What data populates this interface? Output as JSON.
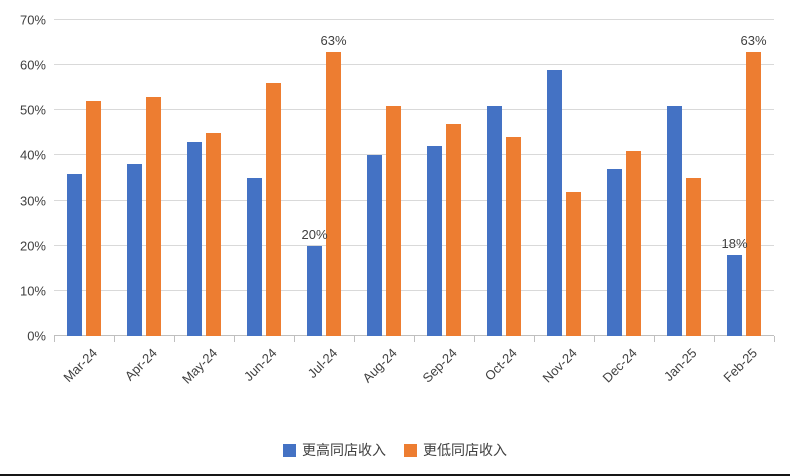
{
  "chart_data": {
    "type": "bar",
    "title": "",
    "categories": [
      "Mar-24",
      "Apr-24",
      "May-24",
      "Jun-24",
      "Jul-24",
      "Aug-24",
      "Sep-24",
      "Oct-24",
      "Nov-24",
      "Dec-24",
      "Jan-25",
      "Feb-25"
    ],
    "series": [
      {
        "name": "更高同店收入",
        "color": "#4472C4",
        "values": [
          36,
          38,
          43,
          35,
          20,
          40,
          42,
          51,
          59,
          37,
          51,
          18
        ]
      },
      {
        "name": "更低同店收入",
        "color": "#ED7D31",
        "values": [
          52,
          53,
          45,
          56,
          63,
          51,
          47,
          44,
          32,
          41,
          35,
          63
        ]
      }
    ],
    "data_labels": [
      {
        "category": "Jul-24",
        "series_index": 0,
        "label": "20%"
      },
      {
        "category": "Jul-24",
        "series_index": 1,
        "label": "63%"
      },
      {
        "category": "Feb-25",
        "series_index": 0,
        "label": "18%"
      },
      {
        "category": "Feb-25",
        "series_index": 1,
        "label": "63%"
      }
    ],
    "yticks": [
      "0%",
      "10%",
      "20%",
      "30%",
      "40%",
      "50%",
      "60%",
      "70%"
    ],
    "ytick_step": 10,
    "ylim": [
      0,
      70
    ],
    "grid": true,
    "legend_position": "bottom",
    "colors": {
      "grid": "#d9d9d9",
      "axis": "#bfbfbf",
      "text": "#404040"
    }
  }
}
